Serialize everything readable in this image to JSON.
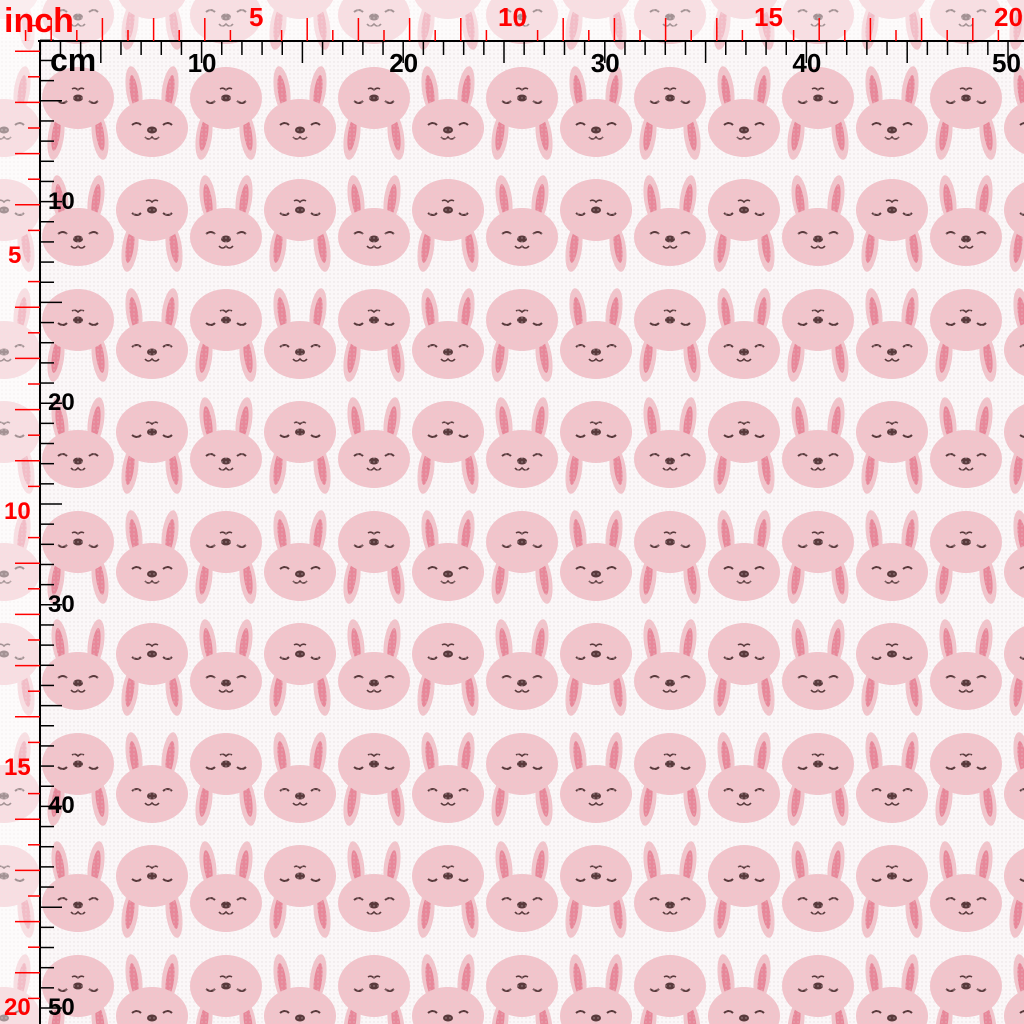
{
  "rulers": {
    "inch_unit": "inch",
    "cm_unit": "cm",
    "inch_top_labels": [
      "5",
      "10",
      "15",
      "20"
    ],
    "cm_top_labels": [
      "10",
      "20",
      "30",
      "40",
      "50"
    ],
    "inch_left_labels": [
      "5",
      "10",
      "15",
      "20"
    ],
    "cm_left_labels": [
      "10",
      "20",
      "30",
      "40",
      "50"
    ]
  },
  "colors": {
    "inch": "#ff0000",
    "cm": "#000000",
    "bunny_head": "#f2c4cb",
    "bunny_ear_inner": "#e8889a",
    "face": "#5a3a3c",
    "background": "#fbf7f8"
  },
  "pattern": {
    "motif": "pink bunny heads, alternating front-facing ears-up and ears-down rows"
  }
}
